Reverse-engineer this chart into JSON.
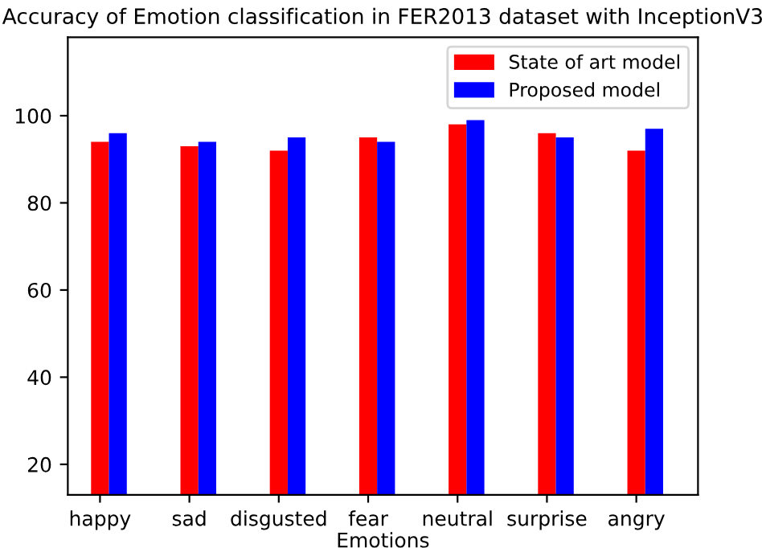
{
  "chart_data": {
    "type": "bar",
    "title": "Accuracy of Emotion classification in FER2013 dataset with InceptionV3",
    "xlabel": "Emotions",
    "categories": [
      "happy",
      "sad",
      "disgusted",
      "fear",
      "neutral",
      "surprise",
      "angry"
    ],
    "series": [
      {
        "name": "State of art model",
        "color": "#ff0000",
        "values": [
          94,
          93,
          92,
          95,
          98,
          96,
          92
        ]
      },
      {
        "name": "Proposed model",
        "color": "#0000ff",
        "values": [
          96,
          94,
          95,
          94,
          99,
          95,
          97
        ]
      }
    ],
    "ylim": [
      13,
      118
    ],
    "yticks": [
      20,
      40,
      60,
      80,
      100
    ],
    "grid": false,
    "legend": "top right"
  }
}
